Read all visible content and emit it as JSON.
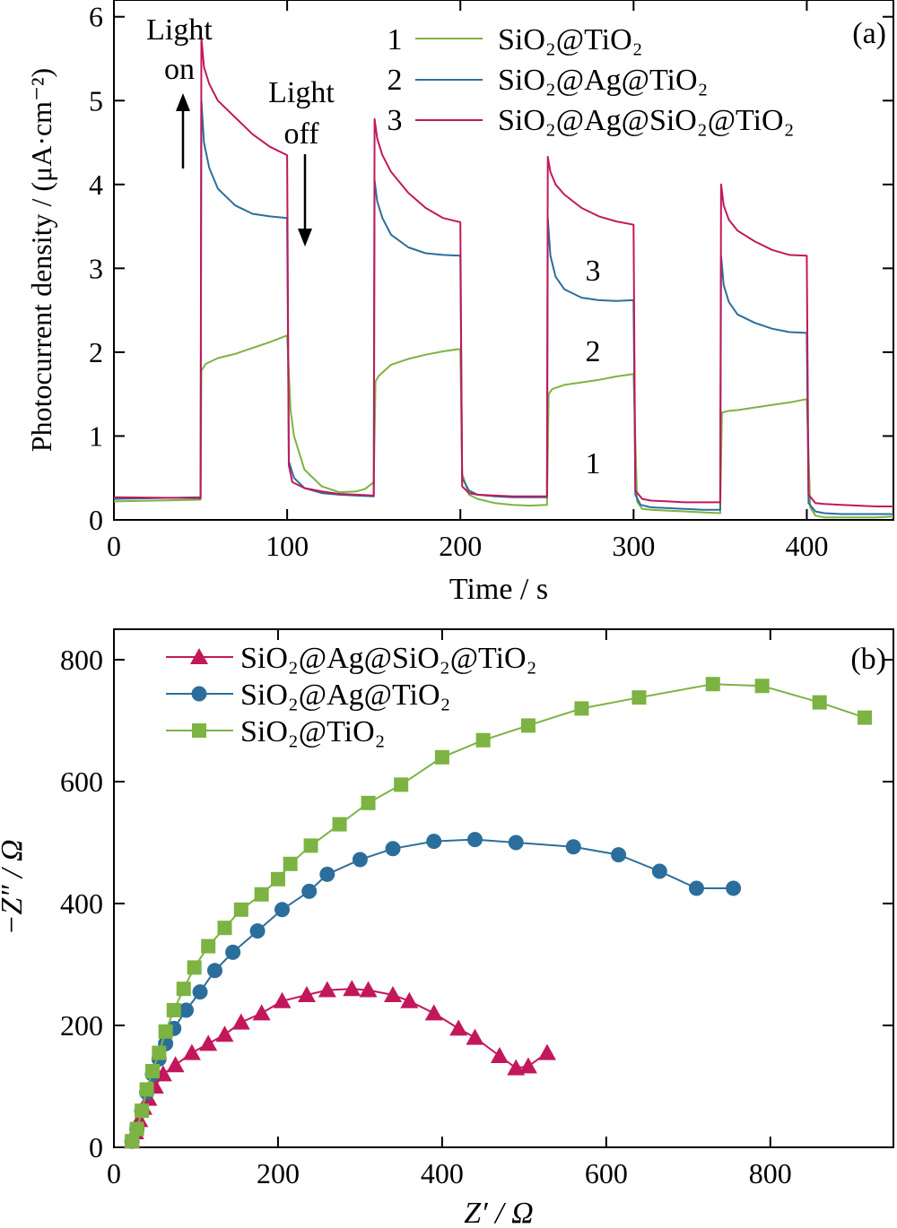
{
  "chart_data": [
    {
      "type": "line",
      "panel_label": "(a)",
      "xlabel": "Time / s",
      "ylabel": "Photocurrent density / (μA·cm⁻²)",
      "xlim": [
        0,
        450
      ],
      "ylim": [
        0,
        6.2
      ],
      "xticks": [
        "0",
        "100",
        "200",
        "300",
        "400"
      ],
      "yticks": [
        "0",
        "1",
        "2",
        "3",
        "4",
        "5",
        "6"
      ],
      "grid": false,
      "legend_position": "top-right",
      "annotations": {
        "light_on_1": "Light",
        "light_on_2": "on",
        "light_off_1": "Light",
        "light_off_2": "off",
        "curve_3": "3",
        "curve_2": "2",
        "curve_1": "1"
      },
      "series": [
        {
          "number": "1",
          "name": "SiO₂@TiO₂",
          "color": "#7cb342",
          "x": [
            0,
            50,
            50.5,
            53,
            60,
            70,
            80,
            90,
            100,
            102,
            104,
            110,
            120,
            130,
            140,
            145,
            150,
            151,
            153,
            160,
            170,
            180,
            190,
            200,
            201,
            205,
            210,
            220,
            230,
            240,
            250,
            251,
            253,
            260,
            270,
            280,
            290,
            300,
            302,
            305,
            310,
            320,
            330,
            340,
            350,
            351,
            355,
            360,
            370,
            380,
            390,
            400,
            402,
            405,
            410,
            420,
            430,
            440,
            450
          ],
          "y": [
            0.22,
            0.24,
            1.78,
            1.86,
            1.93,
            1.98,
            2.05,
            2.12,
            2.2,
            1.3,
            1.0,
            0.6,
            0.4,
            0.33,
            0.34,
            0.37,
            0.45,
            1.65,
            1.72,
            1.85,
            1.92,
            1.97,
            2.01,
            2.04,
            0.55,
            0.3,
            0.25,
            0.2,
            0.18,
            0.17,
            0.18,
            1.5,
            1.56,
            1.61,
            1.64,
            1.67,
            1.71,
            1.74,
            0.22,
            0.13,
            0.12,
            0.11,
            0.1,
            0.09,
            0.08,
            1.28,
            1.3,
            1.31,
            1.34,
            1.37,
            1.4,
            1.44,
            0.15,
            0.05,
            0.03,
            0.03,
            0.03,
            0.03,
            0.04
          ]
        },
        {
          "number": "2",
          "name": "SiO₂@Ag@TiO₂",
          "color": "#2c6e9b",
          "x": [
            0,
            50,
            50.5,
            52,
            55,
            60,
            70,
            80,
            90,
            100,
            101,
            104,
            110,
            120,
            130,
            140,
            150,
            150.5,
            152,
            155,
            160,
            170,
            180,
            190,
            200,
            201,
            205,
            210,
            220,
            230,
            240,
            250,
            250.5,
            252,
            255,
            260,
            270,
            280,
            290,
            300,
            301,
            304,
            310,
            320,
            330,
            340,
            350,
            350.5,
            352,
            355,
            360,
            370,
            380,
            390,
            400,
            401,
            405,
            410,
            420,
            430,
            440,
            450
          ],
          "y": [
            0.25,
            0.27,
            5.0,
            4.5,
            4.2,
            3.95,
            3.75,
            3.65,
            3.62,
            3.6,
            0.7,
            0.5,
            0.38,
            0.32,
            0.3,
            0.29,
            0.28,
            4.05,
            3.8,
            3.6,
            3.4,
            3.25,
            3.18,
            3.16,
            3.15,
            0.5,
            0.35,
            0.3,
            0.28,
            0.27,
            0.27,
            0.27,
            3.6,
            3.15,
            2.9,
            2.75,
            2.65,
            2.62,
            2.61,
            2.62,
            0.3,
            0.18,
            0.15,
            0.14,
            0.13,
            0.12,
            0.12,
            3.15,
            2.8,
            2.6,
            2.45,
            2.35,
            2.28,
            2.24,
            2.23,
            0.2,
            0.1,
            0.08,
            0.07,
            0.07,
            0.07,
            0.07
          ]
        },
        {
          "number": "3",
          "name": "SiO₂@Ag@SiO₂@TiO₂",
          "color": "#c2185b",
          "x": [
            0,
            50,
            50.5,
            52,
            55,
            60,
            70,
            80,
            90,
            100,
            101,
            103,
            110,
            120,
            130,
            140,
            150,
            150.5,
            152,
            155,
            160,
            170,
            180,
            190,
            200,
            201,
            205,
            210,
            220,
            230,
            240,
            250,
            250.5,
            252,
            255,
            260,
            270,
            280,
            290,
            300,
            301,
            305,
            310,
            320,
            330,
            340,
            350,
            350.5,
            352,
            355,
            360,
            370,
            380,
            390,
            400,
            401,
            405,
            410,
            420,
            430,
            440,
            450
          ],
          "y": [
            0.27,
            0.26,
            5.75,
            5.4,
            5.2,
            5.0,
            4.8,
            4.6,
            4.45,
            4.35,
            0.65,
            0.45,
            0.38,
            0.34,
            0.31,
            0.3,
            0.29,
            4.78,
            4.55,
            4.35,
            4.15,
            3.9,
            3.72,
            3.6,
            3.55,
            0.4,
            0.32,
            0.3,
            0.29,
            0.28,
            0.28,
            0.28,
            4.33,
            4.15,
            4.0,
            3.88,
            3.72,
            3.62,
            3.56,
            3.52,
            0.35,
            0.25,
            0.23,
            0.22,
            0.21,
            0.21,
            0.21,
            4.0,
            3.75,
            3.58,
            3.45,
            3.32,
            3.22,
            3.16,
            3.15,
            0.3,
            0.2,
            0.19,
            0.18,
            0.17,
            0.16,
            0.16
          ]
        }
      ]
    },
    {
      "type": "scatter",
      "panel_label": "(b)",
      "xlabel": "Z′ / Ω",
      "ylabel": "−Z″ / Ω",
      "xlim": [
        0,
        950
      ],
      "ylim": [
        0,
        850
      ],
      "xticks": [
        "0",
        "200",
        "400",
        "600",
        "800"
      ],
      "yticks": [
        "0",
        "200",
        "400",
        "600",
        "800"
      ],
      "grid": false,
      "legend_position": "top-left",
      "series": [
        {
          "name": "SiO₂@Ag@SiO₂@TiO₂",
          "marker": "triangle",
          "color": "#c2185b",
          "x": [
            22,
            26,
            31,
            36,
            42,
            50,
            60,
            75,
            95,
            115,
            135,
            155,
            180,
            205,
            235,
            260,
            290,
            310,
            340,
            360,
            390,
            420,
            440,
            470,
            490,
            505,
            528
          ],
          "y": [
            10,
            25,
            45,
            65,
            80,
            100,
            120,
            135,
            155,
            170,
            185,
            205,
            220,
            240,
            250,
            258,
            260,
            258,
            250,
            240,
            220,
            195,
            180,
            150,
            130,
            133,
            155
          ]
        },
        {
          "name": "SiO₂@Ag@TiO₂",
          "marker": "circle",
          "color": "#2c6e9b",
          "x": [
            22,
            28,
            34,
            40,
            47,
            55,
            63,
            73,
            88,
            105,
            123,
            145,
            175,
            205,
            238,
            260,
            300,
            340,
            390,
            440,
            490,
            560,
            615,
            665,
            710,
            755
          ],
          "y": [
            10,
            30,
            60,
            90,
            120,
            145,
            170,
            195,
            225,
            255,
            290,
            320,
            355,
            390,
            420,
            448,
            472,
            490,
            502,
            505,
            500,
            493,
            480,
            453,
            425,
            425
          ]
        },
        {
          "name": "SiO₂@TiO₂",
          "marker": "square",
          "color": "#7cb342",
          "x": [
            22,
            28,
            34,
            40,
            47,
            55,
            63,
            73,
            85,
            98,
            115,
            135,
            155,
            180,
            200,
            215,
            240,
            275,
            310,
            350,
            400,
            450,
            505,
            570,
            640,
            730,
            790,
            860,
            915
          ],
          "y": [
            10,
            30,
            60,
            95,
            125,
            155,
            190,
            225,
            260,
            295,
            330,
            360,
            390,
            415,
            440,
            465,
            495,
            530,
            565,
            595,
            640,
            668,
            692,
            720,
            738,
            760,
            757,
            730,
            705
          ]
        }
      ]
    }
  ]
}
